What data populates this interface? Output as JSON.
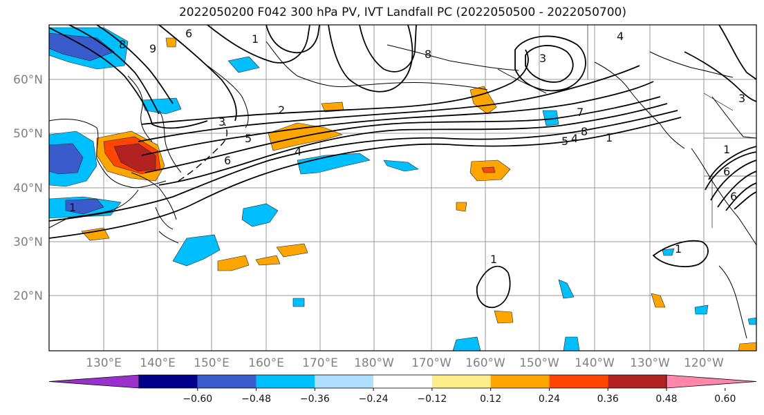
{
  "title": "2022050200 F042 300 hPa PV, IVT Landfall PC (2022050500 - 2022050700)",
  "lat_labels": [
    "60°N",
    "50°N",
    "40°N",
    "30°N",
    "20°N"
  ],
  "lon_labels": [
    "130°E",
    "140°E",
    "150°E",
    "160°E",
    "170°E",
    "180°W",
    "170°W",
    "160°W",
    "150°W",
    "140°W",
    "130°W",
    "120°W"
  ],
  "contour_labels": [
    "6",
    "8",
    "9",
    "1",
    "8",
    "3",
    "4",
    "3",
    "2",
    "3",
    "5",
    "6",
    "4",
    "7",
    "5",
    "4",
    "8",
    "1",
    "1",
    "6",
    "1",
    "1",
    "1",
    "6"
  ],
  "colorbar": {
    "colors": [
      "#9932cc",
      "#00008b",
      "#3a5bcb",
      "#00bfff",
      "#b0e0ff",
      "#ffffff",
      "#ffec8b",
      "#ffa500",
      "#ff4500",
      "#b22222",
      "#ff88aa"
    ],
    "tick_labels": [
      "−0.60",
      "−0.48",
      "−0.36",
      "−0.24",
      "−0.12",
      "0.12",
      "0.24",
      "0.36",
      "0.48",
      "0.60"
    ]
  }
}
